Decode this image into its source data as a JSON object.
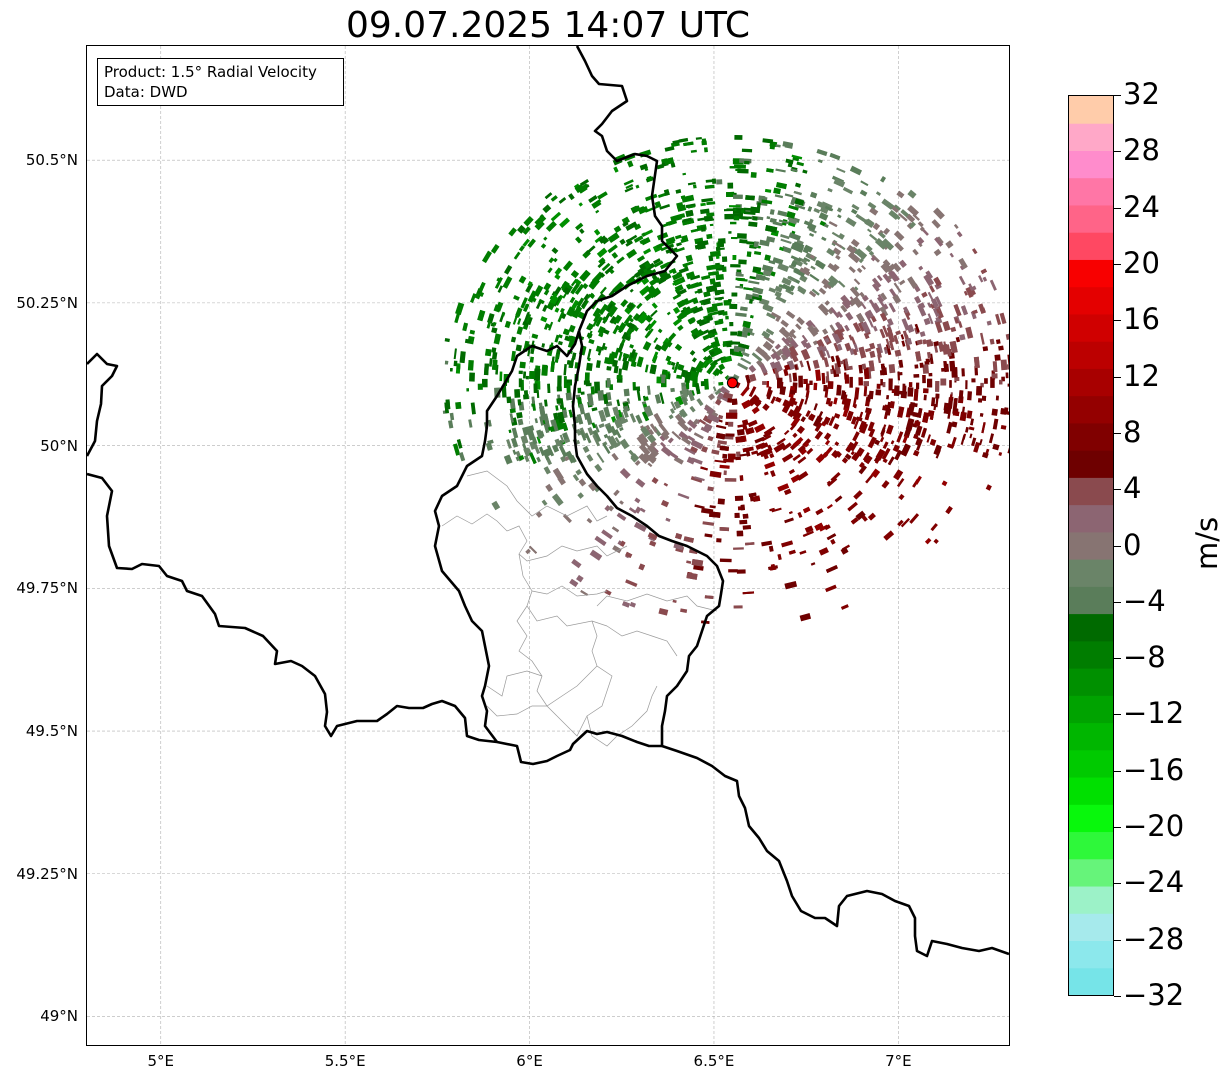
{
  "title": "09.07.2025 14:07 UTC",
  "info_box": {
    "product": "Product: 1.5° Radial Velocity",
    "data": "Data: DWD"
  },
  "map": {
    "lon_range": [
      4.8,
      7.3
    ],
    "lat_range": [
      48.95,
      50.7
    ],
    "lat_ticks": [
      {
        "value": 49.0,
        "label": "49°N"
      },
      {
        "value": 49.25,
        "label": "49.25°N"
      },
      {
        "value": 49.5,
        "label": "49.5°N"
      },
      {
        "value": 49.75,
        "label": "49.75°N"
      },
      {
        "value": 50.0,
        "label": "50°N"
      },
      {
        "value": 50.25,
        "label": "50.25°N"
      },
      {
        "value": 50.5,
        "label": "50.5°N"
      }
    ],
    "lon_ticks": [
      {
        "value": 5.0,
        "label": "5°E"
      },
      {
        "value": 5.5,
        "label": "5.5°E"
      },
      {
        "value": 6.0,
        "label": "6°E"
      },
      {
        "value": 6.5,
        "label": "6.5°E"
      },
      {
        "value": 7.0,
        "label": "7°E"
      }
    ],
    "grid": true,
    "radar_site": {
      "lon": 6.55,
      "lat": 50.11,
      "color": "#ff0000"
    },
    "velocity_field": {
      "center_lon": 6.55,
      "center_lat": 50.11,
      "inbound_sector": "northwest",
      "outbound_sector": "southeast",
      "max_inbound_ms": -9,
      "max_outbound_ms": 9
    }
  },
  "colorbar": {
    "label": "m/s",
    "min": -32,
    "max": 32,
    "ticks": [
      {
        "value": 32,
        "label": "32"
      },
      {
        "value": 28,
        "label": "28"
      },
      {
        "value": 24,
        "label": "24"
      },
      {
        "value": 20,
        "label": "20"
      },
      {
        "value": 16,
        "label": "16"
      },
      {
        "value": 12,
        "label": "12"
      },
      {
        "value": 8,
        "label": "8"
      },
      {
        "value": 4,
        "label": "4"
      },
      {
        "value": 0,
        "label": "0"
      },
      {
        "value": -4,
        "label": "−4"
      },
      {
        "value": -8,
        "label": "−8"
      },
      {
        "value": -12,
        "label": "−12"
      },
      {
        "value": -16,
        "label": "−16"
      },
      {
        "value": -20,
        "label": "−20"
      },
      {
        "value": -24,
        "label": "−24"
      },
      {
        "value": -28,
        "label": "−28"
      },
      {
        "value": -32,
        "label": "−32"
      }
    ],
    "colors": [
      "#76e4e8",
      "#8ce8ec",
      "#a6eaec",
      "#9cf2c8",
      "#66f47a",
      "#2ef83a",
      "#08f80c",
      "#00e000",
      "#00ca00",
      "#00b600",
      "#00a300",
      "#009000",
      "#007d00",
      "#006a00",
      "#5a7d5a",
      "#6a8468",
      "#877472",
      "#8c6572",
      "#8a4a4e",
      "#6e0000",
      "#800000",
      "#940000",
      "#a80000",
      "#bc0000",
      "#d00000",
      "#e40000",
      "#f80000",
      "#ff4862",
      "#ff6488",
      "#ff76a6",
      "#ff8ccc",
      "#ffa8c8",
      "#ffccaa"
    ]
  }
}
